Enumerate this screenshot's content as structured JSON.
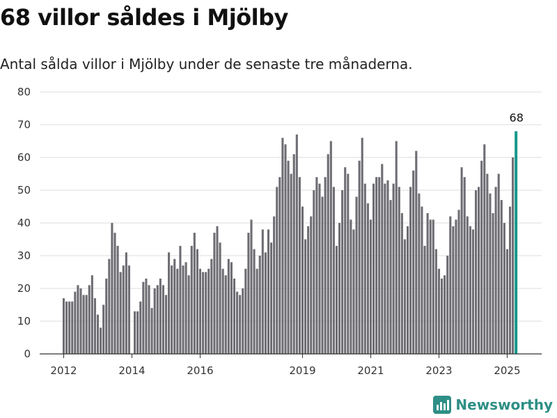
{
  "title": "68 villor såldes i Mjölby",
  "subtitle": "Antal sålda villor i Mjölby under de senaste tre månaderna.",
  "brand": {
    "name": "Newsworthy",
    "icon": "newsworthy-logo-icon"
  },
  "colors": {
    "bar": "#6e6d73",
    "highlight": "#17978c",
    "grid": "#dddddd",
    "brand": "#2e8f86"
  },
  "chart_data": {
    "type": "bar",
    "x_axis": "monthly periods, Jan 2012 – Apr 2025",
    "start": "2012-01",
    "values": [
      17,
      16,
      16,
      16,
      19,
      21,
      20,
      18,
      18,
      21,
      24,
      17,
      12,
      8,
      15,
      23,
      29,
      40,
      37,
      33,
      25,
      27,
      31,
      27,
      null,
      13,
      13,
      16,
      22,
      23,
      21,
      14,
      20,
      21,
      23,
      21,
      18,
      31,
      27,
      29,
      26,
      33,
      27,
      28,
      24,
      33,
      37,
      32,
      26,
      25,
      25,
      26,
      29,
      37,
      39,
      34,
      26,
      24,
      29,
      28,
      23,
      19,
      18,
      20,
      26,
      37,
      41,
      32,
      26,
      30,
      38,
      31,
      38,
      34,
      42,
      51,
      54,
      66,
      64,
      59,
      55,
      61,
      67,
      54,
      45,
      35,
      39,
      42,
      50,
      54,
      52,
      48,
      54,
      61,
      65,
      51,
      33,
      40,
      50,
      57,
      55,
      41,
      38,
      48,
      59,
      66,
      52,
      46,
      41,
      52,
      54,
      54,
      58,
      52,
      53,
      47,
      52,
      65,
      51,
      43,
      35,
      39,
      51,
      56,
      62,
      49,
      45,
      33,
      43,
      41,
      41,
      32,
      26,
      23,
      24,
      30,
      42,
      39,
      41,
      44,
      57,
      54,
      42,
      39,
      38,
      50,
      51,
      59,
      64,
      55,
      49,
      43,
      51,
      55,
      47,
      40,
      32,
      45,
      60,
      68
    ],
    "highlight_last": true,
    "highlight_label": "68",
    "x_ticks": [
      "2012",
      "2014",
      "2016",
      "2019",
      "2021",
      "2023",
      "2025"
    ],
    "y_ticks": [
      "0",
      "10",
      "20",
      "30",
      "40",
      "50",
      "60",
      "70",
      "80"
    ],
    "ylim": [
      0,
      80
    ],
    "grid": true
  }
}
